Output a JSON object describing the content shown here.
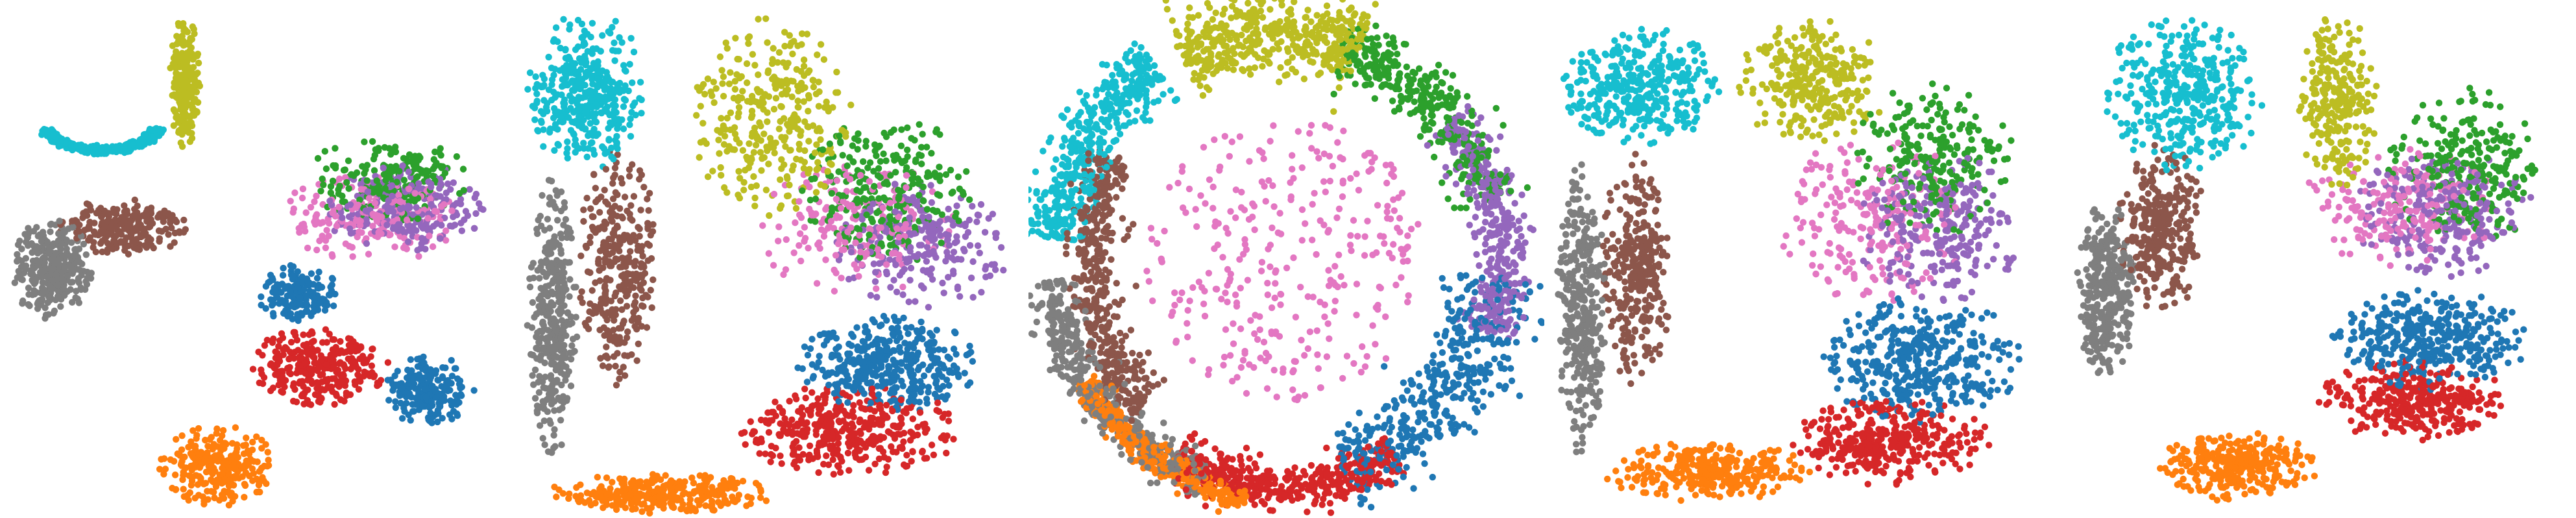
{
  "figure": {
    "title": "",
    "panel_count": 5
  },
  "cluster_colors": [
    "#1f77b4",
    "#ff7f0e",
    "#2ca02c",
    "#d62728",
    "#9467bd",
    "#8c564b",
    "#e377c2",
    "#7f7f7f",
    "#bcbd22",
    "#17becf"
  ],
  "chart_data": [
    {
      "type": "scatter",
      "title": "",
      "xlabel": "",
      "ylabel": "",
      "axes_visible": false,
      "grid": false,
      "legend": "none",
      "xlim": [
        0,
        10
      ],
      "ylim": [
        0,
        10
      ],
      "series": [
        {
          "cluster": 9,
          "color": "#17becf",
          "regions": [
            {
              "cx": 1.9,
              "cy": 7.8,
              "rx": 1.2,
              "ry": 0.65,
              "n": 320,
              "shape": "arc",
              "a0": 200,
              "a1": 340
            }
          ]
        },
        {
          "cluster": 8,
          "color": "#bcbd22",
          "regions": [
            {
              "cx": 3.55,
              "cy": 8.5,
              "rx": 0.3,
              "ry": 1.3,
              "n": 240
            }
          ]
        },
        {
          "cluster": 7,
          "color": "#7f7f7f",
          "regions": [
            {
              "cx": 0.9,
              "cy": 4.8,
              "rx": 0.8,
              "ry": 1.0,
              "n": 320
            }
          ]
        },
        {
          "cluster": 5,
          "color": "#8c564b",
          "regions": [
            {
              "cx": 2.3,
              "cy": 5.6,
              "rx": 1.3,
              "ry": 0.6,
              "n": 240
            }
          ]
        },
        {
          "cluster": 2,
          "color": "#2ca02c",
          "regions": [
            {
              "cx": 7.6,
              "cy": 6.6,
              "rx": 1.6,
              "ry": 0.9,
              "n": 220
            }
          ]
        },
        {
          "cluster": 4,
          "color": "#9467bd",
          "regions": [
            {
              "cx": 7.9,
              "cy": 6.0,
              "rx": 1.6,
              "ry": 0.9,
              "n": 240
            }
          ]
        },
        {
          "cluster": 6,
          "color": "#e377c2",
          "regions": [
            {
              "cx": 7.2,
              "cy": 5.8,
              "rx": 1.8,
              "ry": 0.9,
              "n": 200
            }
          ]
        },
        {
          "cluster": 0,
          "color": "#1f77b4",
          "regions": [
            {
              "cx": 5.8,
              "cy": 4.3,
              "rx": 0.8,
              "ry": 0.6,
              "n": 160
            },
            {
              "cx": 8.4,
              "cy": 2.4,
              "rx": 0.9,
              "ry": 0.7,
              "n": 200
            }
          ]
        },
        {
          "cluster": 3,
          "color": "#d62728",
          "regions": [
            {
              "cx": 6.2,
              "cy": 2.9,
              "rx": 1.4,
              "ry": 0.8,
              "n": 300
            }
          ]
        },
        {
          "cluster": 1,
          "color": "#ff7f0e",
          "regions": [
            {
              "cx": 4.2,
              "cy": 0.9,
              "rx": 1.2,
              "ry": 0.8,
              "n": 260
            }
          ]
        }
      ]
    },
    {
      "type": "scatter",
      "title": "",
      "xlabel": "",
      "ylabel": "",
      "axes_visible": false,
      "grid": false,
      "legend": "none",
      "xlim": [
        0,
        10
      ],
      "ylim": [
        0,
        10
      ],
      "series": [
        {
          "cluster": 9,
          "color": "#17becf",
          "regions": [
            {
              "cx": 1.3,
              "cy": 8.3,
              "rx": 1.2,
              "ry": 1.6,
              "n": 380
            }
          ]
        },
        {
          "cluster": 8,
          "color": "#bcbd22",
          "regions": [
            {
              "cx": 5.0,
              "cy": 7.8,
              "rx": 1.6,
              "ry": 2.0,
              "n": 320
            }
          ]
        },
        {
          "cluster": 7,
          "color": "#7f7f7f",
          "regions": [
            {
              "cx": 0.6,
              "cy": 3.8,
              "rx": 0.5,
              "ry": 2.8,
              "n": 360
            }
          ]
        },
        {
          "cluster": 5,
          "color": "#8c564b",
          "regions": [
            {
              "cx": 1.9,
              "cy": 4.9,
              "rx": 0.8,
              "ry": 2.4,
              "n": 320
            }
          ]
        },
        {
          "cluster": 2,
          "color": "#2ca02c",
          "regions": [
            {
              "cx": 7.4,
              "cy": 6.4,
              "rx": 1.8,
              "ry": 1.5,
              "n": 260
            }
          ]
        },
        {
          "cluster": 4,
          "color": "#9467bd",
          "regions": [
            {
              "cx": 8.0,
              "cy": 5.3,
              "rx": 1.8,
              "ry": 1.3,
              "n": 240
            }
          ]
        },
        {
          "cluster": 6,
          "color": "#e377c2",
          "regions": [
            {
              "cx": 6.7,
              "cy": 5.6,
              "rx": 2.0,
              "ry": 1.4,
              "n": 200
            }
          ]
        },
        {
          "cluster": 0,
          "color": "#1f77b4",
          "regions": [
            {
              "cx": 7.3,
              "cy": 2.9,
              "rx": 1.8,
              "ry": 1.0,
              "n": 380
            }
          ]
        },
        {
          "cluster": 3,
          "color": "#d62728",
          "regions": [
            {
              "cx": 6.5,
              "cy": 1.6,
              "rx": 2.3,
              "ry": 0.9,
              "n": 380
            }
          ]
        },
        {
          "cluster": 1,
          "color": "#ff7f0e",
          "regions": [
            {
              "cx": 2.8,
              "cy": 0.35,
              "rx": 2.3,
              "ry": 0.4,
              "n": 300
            }
          ]
        }
      ]
    },
    {
      "type": "scatter",
      "title": "",
      "xlabel": "",
      "ylabel": "",
      "axes_visible": false,
      "grid": false,
      "legend": "none",
      "xlim": [
        0,
        10
      ],
      "ylim": [
        0,
        10
      ],
      "series": [
        {
          "cluster": 9,
          "color": "#17becf",
          "regions": [
            {
              "cx": 5.0,
              "cy": 5.0,
              "rx": 4.6,
              "ry": 4.7,
              "n": 420,
              "shape": "arc",
              "a0": 125,
              "a1": 175,
              "width": 0.14
            }
          ]
        },
        {
          "cluster": 8,
          "color": "#bcbd22",
          "regions": [
            {
              "cx": 5.0,
              "cy": 5.0,
              "rx": 4.4,
              "ry": 4.5,
              "n": 440,
              "shape": "arc",
              "a0": 70,
              "a1": 118,
              "width": 0.18
            }
          ]
        },
        {
          "cluster": 5,
          "color": "#8c564b",
          "regions": [
            {
              "cx": 5.0,
              "cy": 5.0,
              "rx": 3.9,
              "ry": 4.1,
              "n": 420,
              "shape": "arc",
              "a0": 150,
              "a1": 225,
              "width": 0.13
            }
          ]
        },
        {
          "cluster": 7,
          "color": "#7f7f7f",
          "regions": [
            {
              "cx": 5.0,
              "cy": 5.0,
              "rx": 4.7,
              "ry": 4.6,
              "n": 420,
              "shape": "arc",
              "a0": 185,
              "a1": 250,
              "width": 0.1
            }
          ]
        },
        {
          "cluster": 2,
          "color": "#2ca02c",
          "regions": [
            {
              "cx": 5.0,
              "cy": 5.0,
              "rx": 4.2,
              "ry": 4.3,
              "n": 360,
              "shape": "arc",
              "a0": 15,
              "a1": 75,
              "width": 0.14
            }
          ]
        },
        {
          "cluster": 4,
          "color": "#9467bd",
          "regions": [
            {
              "cx": 5.0,
              "cy": 5.0,
              "rx": 4.3,
              "ry": 4.3,
              "n": 360,
              "shape": "arc",
              "a0": -20,
              "a1": 40,
              "width": 0.12
            }
          ]
        },
        {
          "cluster": 6,
          "color": "#e377c2",
          "regions": [
            {
              "cx": 5.0,
              "cy": 5.0,
              "rx": 2.8,
              "ry": 2.8,
              "n": 320,
              "shape": "disk"
            }
          ]
        },
        {
          "cluster": 0,
          "color": "#1f77b4",
          "regions": [
            {
              "cx": 5.0,
              "cy": 5.0,
              "rx": 4.2,
              "ry": 4.2,
              "n": 420,
              "shape": "arc",
              "a0": -75,
              "a1": -5,
              "width": 0.2
            }
          ]
        },
        {
          "cluster": 3,
          "color": "#d62728",
          "regions": [
            {
              "cx": 5.0,
              "cy": 5.0,
              "rx": 4.3,
              "ry": 4.5,
              "n": 420,
              "shape": "arc",
              "a0": -120,
              "a1": -60,
              "width": 0.1
            }
          ]
        },
        {
          "cluster": 1,
          "color": "#ff7f0e",
          "regions": [
            {
              "cx": 5.0,
              "cy": 5.0,
              "rx": 4.6,
              "ry": 4.8,
              "n": 360,
              "shape": "arc",
              "a0": -150,
              "a1": -100,
              "width": 0.06
            }
          ]
        }
      ]
    },
    {
      "type": "scatter",
      "title": "",
      "xlabel": "",
      "ylabel": "",
      "axes_visible": false,
      "grid": false,
      "legend": "none",
      "xlim": [
        0,
        10
      ],
      "ylim": [
        0,
        10
      ],
      "series": [
        {
          "cluster": 9,
          "color": "#17becf",
          "regions": [
            {
              "cx": 1.8,
              "cy": 8.4,
              "rx": 1.6,
              "ry": 1.2,
              "n": 360
            }
          ]
        },
        {
          "cluster": 8,
          "color": "#bcbd22",
          "regions": [
            {
              "cx": 5.2,
              "cy": 8.5,
              "rx": 1.5,
              "ry": 1.3,
              "n": 280
            }
          ]
        },
        {
          "cluster": 7,
          "color": "#7f7f7f",
          "regions": [
            {
              "cx": 0.6,
              "cy": 4.0,
              "rx": 0.5,
              "ry": 2.9,
              "n": 340
            }
          ]
        },
        {
          "cluster": 5,
          "color": "#8c564b",
          "regions": [
            {
              "cx": 1.7,
              "cy": 4.8,
              "rx": 0.7,
              "ry": 2.3,
              "n": 300
            }
          ]
        },
        {
          "cluster": 2,
          "color": "#2ca02c",
          "regions": [
            {
              "cx": 7.6,
              "cy": 7.0,
              "rx": 1.6,
              "ry": 1.6,
              "n": 240
            }
          ]
        },
        {
          "cluster": 4,
          "color": "#9467bd",
          "regions": [
            {
              "cx": 7.7,
              "cy": 5.6,
              "rx": 1.7,
              "ry": 1.5,
              "n": 260
            }
          ]
        },
        {
          "cluster": 6,
          "color": "#e377c2",
          "regions": [
            {
              "cx": 6.4,
              "cy": 5.8,
              "rx": 1.9,
              "ry": 1.7,
              "n": 220
            }
          ]
        },
        {
          "cluster": 0,
          "color": "#1f77b4",
          "regions": [
            {
              "cx": 7.4,
              "cy": 3.0,
              "rx": 2.0,
              "ry": 1.3,
              "n": 380
            }
          ]
        },
        {
          "cluster": 3,
          "color": "#d62728",
          "regions": [
            {
              "cx": 6.8,
              "cy": 1.4,
              "rx": 2.0,
              "ry": 0.9,
              "n": 340
            }
          ]
        },
        {
          "cluster": 1,
          "color": "#ff7f0e",
          "regions": [
            {
              "cx": 3.1,
              "cy": 0.8,
              "rx": 2.1,
              "ry": 0.6,
              "n": 300
            }
          ]
        }
      ]
    },
    {
      "type": "scatter",
      "title": "",
      "xlabel": "",
      "ylabel": "",
      "axes_visible": false,
      "grid": false,
      "legend": "none",
      "xlim": [
        0,
        10
      ],
      "ylim": [
        0,
        10
      ],
      "series": [
        {
          "cluster": 9,
          "color": "#17becf",
          "regions": [
            {
              "cx": 2.3,
              "cy": 8.2,
              "rx": 1.6,
              "ry": 1.6,
              "n": 360
            }
          ]
        },
        {
          "cluster": 8,
          "color": "#bcbd22",
          "regions": [
            {
              "cx": 5.4,
              "cy": 8.1,
              "rx": 0.8,
              "ry": 1.8,
              "n": 260
            }
          ]
        },
        {
          "cluster": 7,
          "color": "#7f7f7f",
          "regions": [
            {
              "cx": 0.8,
              "cy": 4.4,
              "rx": 0.6,
              "ry": 1.8,
              "n": 320
            }
          ]
        },
        {
          "cluster": 5,
          "color": "#8c564b",
          "regions": [
            {
              "cx": 1.9,
              "cy": 5.6,
              "rx": 0.9,
              "ry": 1.7,
              "n": 300
            }
          ]
        },
        {
          "cluster": 2,
          "color": "#2ca02c",
          "regions": [
            {
              "cx": 7.9,
              "cy": 6.8,
              "rx": 1.6,
              "ry": 1.6,
              "n": 240
            }
          ]
        },
        {
          "cluster": 4,
          "color": "#9467bd",
          "regions": [
            {
              "cx": 7.5,
              "cy": 5.9,
              "rx": 1.8,
              "ry": 1.3,
              "n": 260
            }
          ]
        },
        {
          "cluster": 6,
          "color": "#e377c2",
          "regions": [
            {
              "cx": 6.6,
              "cy": 6.0,
              "rx": 2.0,
              "ry": 1.2,
              "n": 200
            }
          ]
        },
        {
          "cluster": 0,
          "color": "#1f77b4",
          "regions": [
            {
              "cx": 7.2,
              "cy": 3.4,
              "rx": 2.0,
              "ry": 1.0,
              "n": 360
            }
          ]
        },
        {
          "cluster": 3,
          "color": "#d62728",
          "regions": [
            {
              "cx": 6.9,
              "cy": 2.2,
              "rx": 1.9,
              "ry": 0.8,
              "n": 320
            }
          ]
        },
        {
          "cluster": 1,
          "color": "#ff7f0e",
          "regions": [
            {
              "cx": 3.4,
              "cy": 0.9,
              "rx": 1.6,
              "ry": 0.7,
              "n": 300
            }
          ]
        }
      ]
    }
  ]
}
